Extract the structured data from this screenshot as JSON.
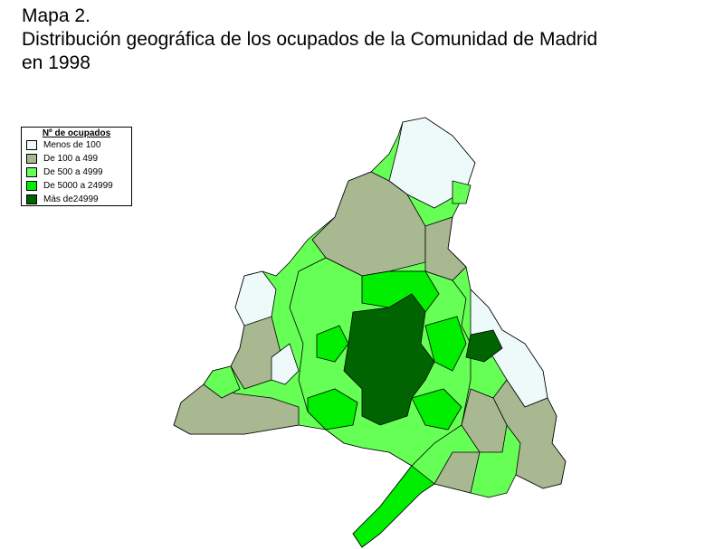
{
  "header": {
    "title_lines": [
      "Mapa 2.",
      "Distribución geográfica de los ocupados de la Comunidad de Madrid",
      "en 1998"
    ]
  },
  "legend": {
    "title": "Nº de ocupados",
    "items": [
      {
        "label": "Menos de 100",
        "color": "#eefafa"
      },
      {
        "label": "De 100 a 499",
        "color": "#a8b890"
      },
      {
        "label": "De 500 a 4999",
        "color": "#66ff55"
      },
      {
        "label": "De 5000 a 24999",
        "color": "#00ee00"
      },
      {
        "label": "Más de24999",
        "color": "#006400"
      }
    ]
  }
}
